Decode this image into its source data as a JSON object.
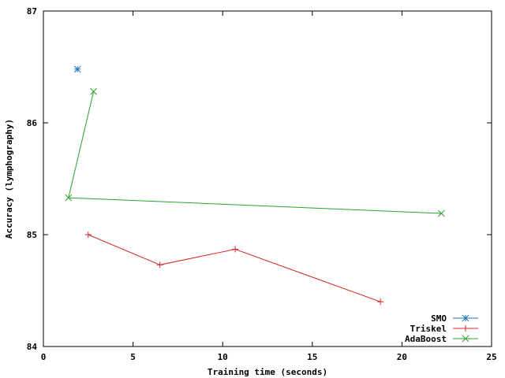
{
  "chart_data": {
    "type": "line",
    "xlabel": "Training time (seconds)",
    "ylabel": "Accuracy (lymphography)",
    "xlim": [
      0,
      25
    ],
    "ylim": [
      84,
      87
    ],
    "xticks": [
      0,
      5,
      10,
      15,
      20,
      25
    ],
    "yticks": [
      84,
      85,
      86,
      87
    ],
    "grid": false,
    "legend_position": "bottom-right",
    "series": [
      {
        "name": "SMO",
        "color": "#1f77b4",
        "marker": "asterisk",
        "lines": false,
        "points": [
          {
            "x": 1.9,
            "y": 86.48
          }
        ]
      },
      {
        "name": "Triskel",
        "color": "#d62728",
        "marker": "plus",
        "lines": true,
        "points": [
          {
            "x": 2.5,
            "y": 85.0
          },
          {
            "x": 6.5,
            "y": 84.73
          },
          {
            "x": 10.7,
            "y": 84.87
          },
          {
            "x": 18.8,
            "y": 84.4
          }
        ]
      },
      {
        "name": "AdaBoost",
        "color": "#2ca02c",
        "marker": "cross",
        "lines": true,
        "points": [
          {
            "x": 2.8,
            "y": 86.28
          },
          {
            "x": 1.4,
            "y": 85.33
          },
          {
            "x": 22.2,
            "y": 85.19
          }
        ]
      }
    ]
  }
}
